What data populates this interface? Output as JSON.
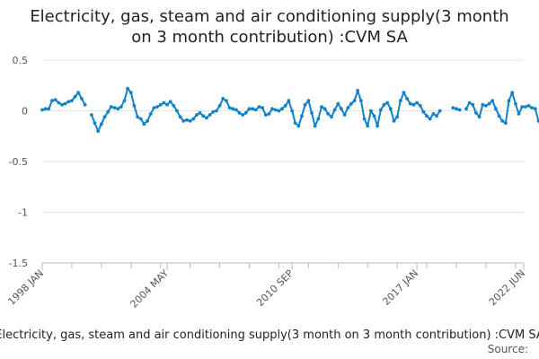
{
  "chart_data": {
    "type": "line",
    "title_lines": [
      "Electricity, gas, steam and air conditioning supply(3 month",
      "on 3 month contribution) :CVM SA"
    ],
    "xlabel": "",
    "ylabel": "",
    "x_range": [
      "1998 JAN",
      "2022 JUN"
    ],
    "ylim": [
      -1.5,
      0.5
    ],
    "y_ticks": [
      0.5,
      0,
      -0.5,
      -1,
      -1.5
    ],
    "x_ticks": [
      "1998 JAN",
      "2004 MAY",
      "2010 SEP",
      "2017 JAN",
      "2022 JUN"
    ],
    "grid": true,
    "legend_position": "bottom",
    "series": [
      {
        "name": "Electricity, gas, steam and air conditioning supply(3 month on 3 month contribution) :CVM SA",
        "color": "#0f82c8",
        "points": [
          [
            "1998 JAN",
            0.01
          ],
          [
            "1998 MAR",
            0.02
          ],
          [
            "1998 MAY",
            0.02
          ],
          [
            "1998 JUL",
            0.1
          ],
          [
            "1998 SEP",
            0.11
          ],
          [
            "1998 NOV",
            0.08
          ],
          [
            "1999 JAN",
            0.06
          ],
          [
            "1999 MAR",
            0.07
          ],
          [
            "1999 MAY",
            0.09
          ],
          [
            "1999 JUL",
            0.1
          ],
          [
            "1999 SEP",
            0.14
          ],
          [
            "1999 NOV",
            0.18
          ],
          [
            "2000 JAN",
            0.12
          ],
          [
            "2000 MAR",
            0.06
          ],
          [
            "2000 JUL",
            -0.04
          ],
          [
            "2000 SEP",
            -0.12
          ],
          [
            "2000 NOV",
            -0.2
          ],
          [
            "2001 JAN",
            -0.13
          ],
          [
            "2001 MAR",
            -0.06
          ],
          [
            "2001 MAY",
            -0.01
          ],
          [
            "2001 JUL",
            0.04
          ],
          [
            "2001 SEP",
            0.03
          ],
          [
            "2001 NOV",
            0.02
          ],
          [
            "2002 JAN",
            0.04
          ],
          [
            "2002 MAR",
            0.1
          ],
          [
            "2002 MAY",
            0.22
          ],
          [
            "2002 JUL",
            0.18
          ],
          [
            "2002 SEP",
            0.05
          ],
          [
            "2002 NOV",
            -0.06
          ],
          [
            "2003 JAN",
            -0.08
          ],
          [
            "2003 MAR",
            -0.13
          ],
          [
            "2003 MAY",
            -0.1
          ],
          [
            "2003 JUL",
            -0.03
          ],
          [
            "2003 SEP",
            0.03
          ],
          [
            "2003 NOV",
            0.04
          ],
          [
            "2004 JAN",
            0.06
          ],
          [
            "2004 MAR",
            0.08
          ],
          [
            "2004 MAY",
            0.06
          ],
          [
            "2004 JUL",
            0.09
          ],
          [
            "2004 SEP",
            0.05
          ],
          [
            "2004 NOV",
            0.0
          ],
          [
            "2005 JAN",
            -0.06
          ],
          [
            "2005 MAR",
            -0.1
          ],
          [
            "2005 MAY",
            -0.09
          ],
          [
            "2005 JUL",
            -0.1
          ],
          [
            "2005 SEP",
            -0.08
          ],
          [
            "2005 NOV",
            -0.04
          ],
          [
            "2006 JAN",
            -0.02
          ],
          [
            "2006 MAR",
            -0.05
          ],
          [
            "2006 MAY",
            -0.07
          ],
          [
            "2006 JUL",
            -0.04
          ],
          [
            "2006 SEP",
            -0.01
          ],
          [
            "2006 NOV",
            0.0
          ],
          [
            "2007 JAN",
            0.05
          ],
          [
            "2007 MAR",
            0.12
          ],
          [
            "2007 MAY",
            0.1
          ],
          [
            "2007 JUL",
            0.03
          ],
          [
            "2007 SEP",
            0.02
          ],
          [
            "2007 NOV",
            0.01
          ],
          [
            "2008 JAN",
            -0.02
          ],
          [
            "2008 MAR",
            -0.04
          ],
          [
            "2008 MAY",
            -0.02
          ],
          [
            "2008 JUL",
            0.02
          ],
          [
            "2008 SEP",
            0.02
          ],
          [
            "2008 NOV",
            0.01
          ],
          [
            "2009 JAN",
            0.04
          ],
          [
            "2009 MAR",
            0.03
          ],
          [
            "2009 MAY",
            -0.04
          ],
          [
            "2009 JUL",
            -0.03
          ],
          [
            "2009 SEP",
            0.02
          ],
          [
            "2009 NOV",
            0.01
          ],
          [
            "2010 JAN",
            0.0
          ],
          [
            "2010 MAR",
            0.02
          ],
          [
            "2010 MAY",
            0.05
          ],
          [
            "2010 JUL",
            0.1
          ],
          [
            "2010 SEP",
            0.0
          ],
          [
            "2010 NOV",
            -0.12
          ],
          [
            "2011 JAN",
            -0.15
          ],
          [
            "2011 MAR",
            -0.05
          ],
          [
            "2011 MAY",
            0.06
          ],
          [
            "2011 JUL",
            0.1
          ],
          [
            "2011 SEP",
            -0.02
          ],
          [
            "2011 NOV",
            -0.15
          ],
          [
            "2012 JAN",
            -0.08
          ],
          [
            "2012 MAR",
            0.04
          ],
          [
            "2012 MAY",
            0.02
          ],
          [
            "2012 JUL",
            -0.03
          ],
          [
            "2012 SEP",
            -0.06
          ],
          [
            "2012 NOV",
            0.01
          ],
          [
            "2013 JAN",
            0.07
          ],
          [
            "2013 MAR",
            0.02
          ],
          [
            "2013 MAY",
            -0.04
          ],
          [
            "2013 JUL",
            0.03
          ],
          [
            "2013 SEP",
            0.07
          ],
          [
            "2013 NOV",
            0.1
          ],
          [
            "2014 JAN",
            0.2
          ],
          [
            "2014 MAR",
            0.1
          ],
          [
            "2014 MAY",
            -0.08
          ],
          [
            "2014 JUL",
            -0.15
          ],
          [
            "2014 SEP",
            0.0
          ],
          [
            "2014 NOV",
            -0.05
          ],
          [
            "2015 JAN",
            -0.15
          ],
          [
            "2015 MAR",
            0.01
          ],
          [
            "2015 MAY",
            0.06
          ],
          [
            "2015 JUL",
            0.08
          ],
          [
            "2015 SEP",
            0.02
          ],
          [
            "2015 NOV",
            -0.1
          ],
          [
            "2016 JAN",
            -0.06
          ],
          [
            "2016 MAR",
            0.1
          ],
          [
            "2016 MAY",
            0.18
          ],
          [
            "2016 JUL",
            0.12
          ],
          [
            "2016 SEP",
            0.07
          ],
          [
            "2016 NOV",
            0.06
          ],
          [
            "2017 JAN",
            0.08
          ],
          [
            "2017 MAR",
            0.05
          ],
          [
            "2017 MAY",
            -0.01
          ],
          [
            "2017 JUL",
            -0.05
          ],
          [
            "2017 SEP",
            -0.08
          ],
          [
            "2017 NOV",
            -0.03
          ],
          [
            "2018 JAN",
            -0.05
          ],
          [
            "2018 MAR",
            0.0
          ],
          [
            "2018 NOV",
            0.03
          ],
          [
            "2019 JAN",
            0.02
          ],
          [
            "2019 MAR",
            0.01
          ],
          [
            "2019 JUL",
            0.02
          ],
          [
            "2019 SEP",
            0.08
          ],
          [
            "2019 NOV",
            0.06
          ],
          [
            "2020 JAN",
            -0.02
          ],
          [
            "2020 MAR",
            -0.06
          ],
          [
            "2020 MAY",
            0.06
          ],
          [
            "2020 JUL",
            0.05
          ],
          [
            "2020 SEP",
            0.07
          ],
          [
            "2020 NOV",
            0.1
          ],
          [
            "2021 JAN",
            0.02
          ],
          [
            "2021 MAR",
            -0.05
          ],
          [
            "2021 MAY",
            -0.1
          ],
          [
            "2021 JUL",
            -0.12
          ],
          [
            "2021 SEP",
            0.1
          ],
          [
            "2021 NOV",
            0.18
          ],
          [
            "2022 JAN",
            0.07
          ],
          [
            "2022 MAR",
            -0.03
          ],
          [
            "2022 MAY",
            0.04
          ],
          [
            "2022 JUL",
            0.04
          ],
          [
            "2022 SEP",
            0.05
          ],
          [
            "2022 NOV",
            0.03
          ],
          [
            "2023 JAN",
            0.02
          ],
          [
            "2023 MAR",
            -0.1
          ],
          [
            "2023 MAY",
            -0.14
          ],
          [
            "2023 JUL",
            -0.08
          ],
          [
            "2023 SEP",
            0.02
          ],
          [
            "2023 NOV",
            0.03
          ],
          [
            "2024 JAN",
            0.02
          ],
          [
            "2024 MAR",
            0.03
          ]
        ]
      }
    ],
    "legend_label": "Electricity, gas, steam and air conditioning supply(3 month on 3 month contribution) :CVM SA",
    "source_label": "Source:"
  }
}
